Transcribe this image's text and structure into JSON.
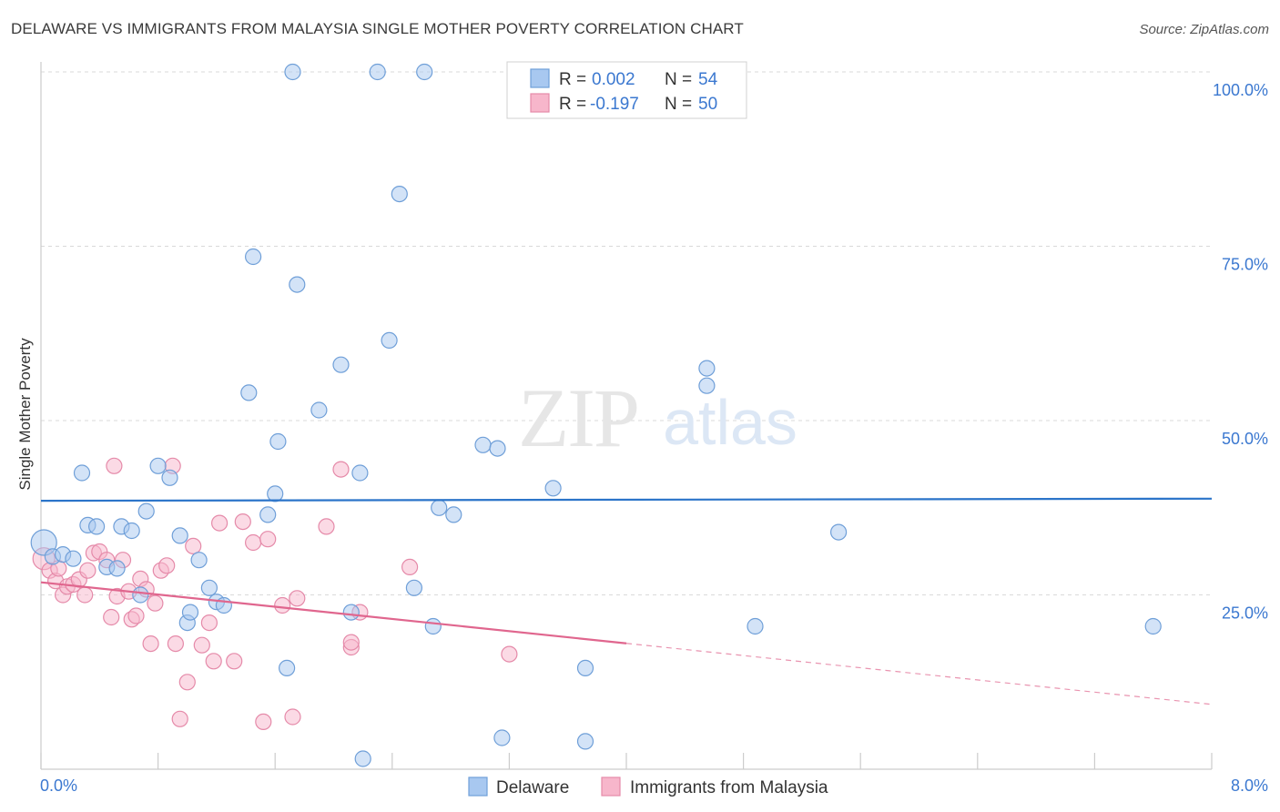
{
  "header": {
    "title": "DELAWARE VS IMMIGRANTS FROM MALAYSIA SINGLE MOTHER POVERTY CORRELATION CHART",
    "source": "Source: ZipAtlas.com"
  },
  "watermark": {
    "zip": "ZIP",
    "atlas": "atlas"
  },
  "colors": {
    "blue_fill": "#a8c8f0",
    "blue_stroke": "#6f9fd8",
    "blue_line": "#2b74c9",
    "pink_fill": "#f7b6cb",
    "pink_stroke": "#e58aa9",
    "pink_line": "#e0668e",
    "tick_label": "#3b78d0",
    "grid": "#d9d9d9"
  },
  "legend_top": {
    "rows": [
      {
        "r_label": "R =",
        "r_value": "0.002",
        "n_label": "N =",
        "n_value": "54"
      },
      {
        "r_label": "R =",
        "r_value": "-0.197",
        "n_label": "N =",
        "n_value": "50"
      }
    ]
  },
  "legend_bottom": [
    "Delaware",
    "Immigrants from Malaysia"
  ],
  "chart_data": {
    "type": "scatter",
    "title": "DELAWARE VS IMMIGRANTS FROM MALAYSIA SINGLE MOTHER POVERTY CORRELATION CHART",
    "xlabel": "",
    "ylabel": "Single Mother Poverty",
    "xlim": [
      0,
      8
    ],
    "ylim": [
      0,
      100
    ],
    "x_tick_labels": [
      "0.0%",
      "8.0%"
    ],
    "y_tick_labels": [
      "25.0%",
      "50.0%",
      "75.0%",
      "100.0%"
    ],
    "y_ticks": [
      25,
      50,
      75,
      100
    ],
    "grid": true,
    "legend_position": "top-center",
    "series": [
      {
        "name": "Delaware",
        "color": "blue",
        "r": 0.002,
        "n": 54,
        "trend": {
          "x": [
            0,
            8
          ],
          "y": [
            38.5,
            38.8
          ],
          "dashed_from_x": null
        },
        "points": [
          [
            0.02,
            32.5
          ],
          [
            0.08,
            30.5
          ],
          [
            0.15,
            30.8
          ],
          [
            0.22,
            30.2
          ],
          [
            0.28,
            42.5
          ],
          [
            0.32,
            35
          ],
          [
            0.38,
            34.8
          ],
          [
            0.45,
            29
          ],
          [
            0.52,
            28.8
          ],
          [
            0.55,
            34.8
          ],
          [
            0.62,
            34.2
          ],
          [
            0.68,
            25
          ],
          [
            0.72,
            37
          ],
          [
            0.8,
            43.5
          ],
          [
            0.88,
            41.8
          ],
          [
            0.95,
            33.5
          ],
          [
            1.0,
            21
          ],
          [
            1.02,
            22.5
          ],
          [
            1.08,
            30
          ],
          [
            1.15,
            26
          ],
          [
            1.2,
            24
          ],
          [
            1.25,
            23.5
          ],
          [
            1.42,
            54
          ],
          [
            1.45,
            73.5
          ],
          [
            1.55,
            36.5
          ],
          [
            1.6,
            39.5
          ],
          [
            1.62,
            47
          ],
          [
            1.68,
            14.5
          ],
          [
            1.72,
            100
          ],
          [
            1.75,
            69.5
          ],
          [
            1.9,
            51.5
          ],
          [
            2.05,
            58
          ],
          [
            2.12,
            22.5
          ],
          [
            2.18,
            42.5
          ],
          [
            2.2,
            1.5
          ],
          [
            2.3,
            100
          ],
          [
            2.38,
            61.5
          ],
          [
            2.45,
            82.5
          ],
          [
            2.55,
            26
          ],
          [
            2.62,
            100
          ],
          [
            2.68,
            20.5
          ],
          [
            2.72,
            37.5
          ],
          [
            2.82,
            36.5
          ],
          [
            3.02,
            46.5
          ],
          [
            3.12,
            46
          ],
          [
            3.15,
            4.5
          ],
          [
            3.5,
            40.3
          ],
          [
            3.72,
            4
          ],
          [
            3.72,
            14.5
          ],
          [
            4.55,
            55
          ],
          [
            4.55,
            57.5
          ],
          [
            4.88,
            20.5
          ],
          [
            5.45,
            34
          ],
          [
            7.6,
            20.5
          ]
        ]
      },
      {
        "name": "Immigrants from Malaysia",
        "color": "pink",
        "r": -0.197,
        "n": 50,
        "trend": {
          "x": [
            0,
            8
          ],
          "y": [
            26.8,
            9.3
          ],
          "dashed_from_x": 4.0
        },
        "points": [
          [
            0.02,
            30.2
          ],
          [
            0.06,
            28.5
          ],
          [
            0.1,
            27
          ],
          [
            0.12,
            28.8
          ],
          [
            0.15,
            25
          ],
          [
            0.18,
            26.2
          ],
          [
            0.22,
            26.5
          ],
          [
            0.26,
            27.2
          ],
          [
            0.3,
            25
          ],
          [
            0.32,
            28.5
          ],
          [
            0.36,
            31
          ],
          [
            0.4,
            31.2
          ],
          [
            0.45,
            30
          ],
          [
            0.48,
            21.8
          ],
          [
            0.5,
            43.5
          ],
          [
            0.52,
            24.8
          ],
          [
            0.56,
            30
          ],
          [
            0.6,
            25.5
          ],
          [
            0.62,
            21.5
          ],
          [
            0.65,
            22
          ],
          [
            0.68,
            27.3
          ],
          [
            0.72,
            25.8
          ],
          [
            0.75,
            18
          ],
          [
            0.78,
            23.8
          ],
          [
            0.82,
            28.5
          ],
          [
            0.86,
            29.2
          ],
          [
            0.9,
            43.5
          ],
          [
            0.92,
            18
          ],
          [
            0.95,
            7.2
          ],
          [
            1.0,
            12.5
          ],
          [
            1.04,
            32
          ],
          [
            1.1,
            17.8
          ],
          [
            1.15,
            21
          ],
          [
            1.18,
            15.5
          ],
          [
            1.22,
            35.3
          ],
          [
            1.32,
            15.5
          ],
          [
            1.38,
            35.5
          ],
          [
            1.45,
            32.5
          ],
          [
            1.52,
            6.8
          ],
          [
            1.55,
            33
          ],
          [
            1.65,
            23.5
          ],
          [
            1.72,
            7.5
          ],
          [
            1.75,
            24.5
          ],
          [
            1.95,
            34.8
          ],
          [
            2.05,
            43
          ],
          [
            2.12,
            17.5
          ],
          [
            2.12,
            18.2
          ],
          [
            2.18,
            22.5
          ],
          [
            2.52,
            29
          ],
          [
            3.2,
            16.5
          ]
        ]
      }
    ]
  }
}
